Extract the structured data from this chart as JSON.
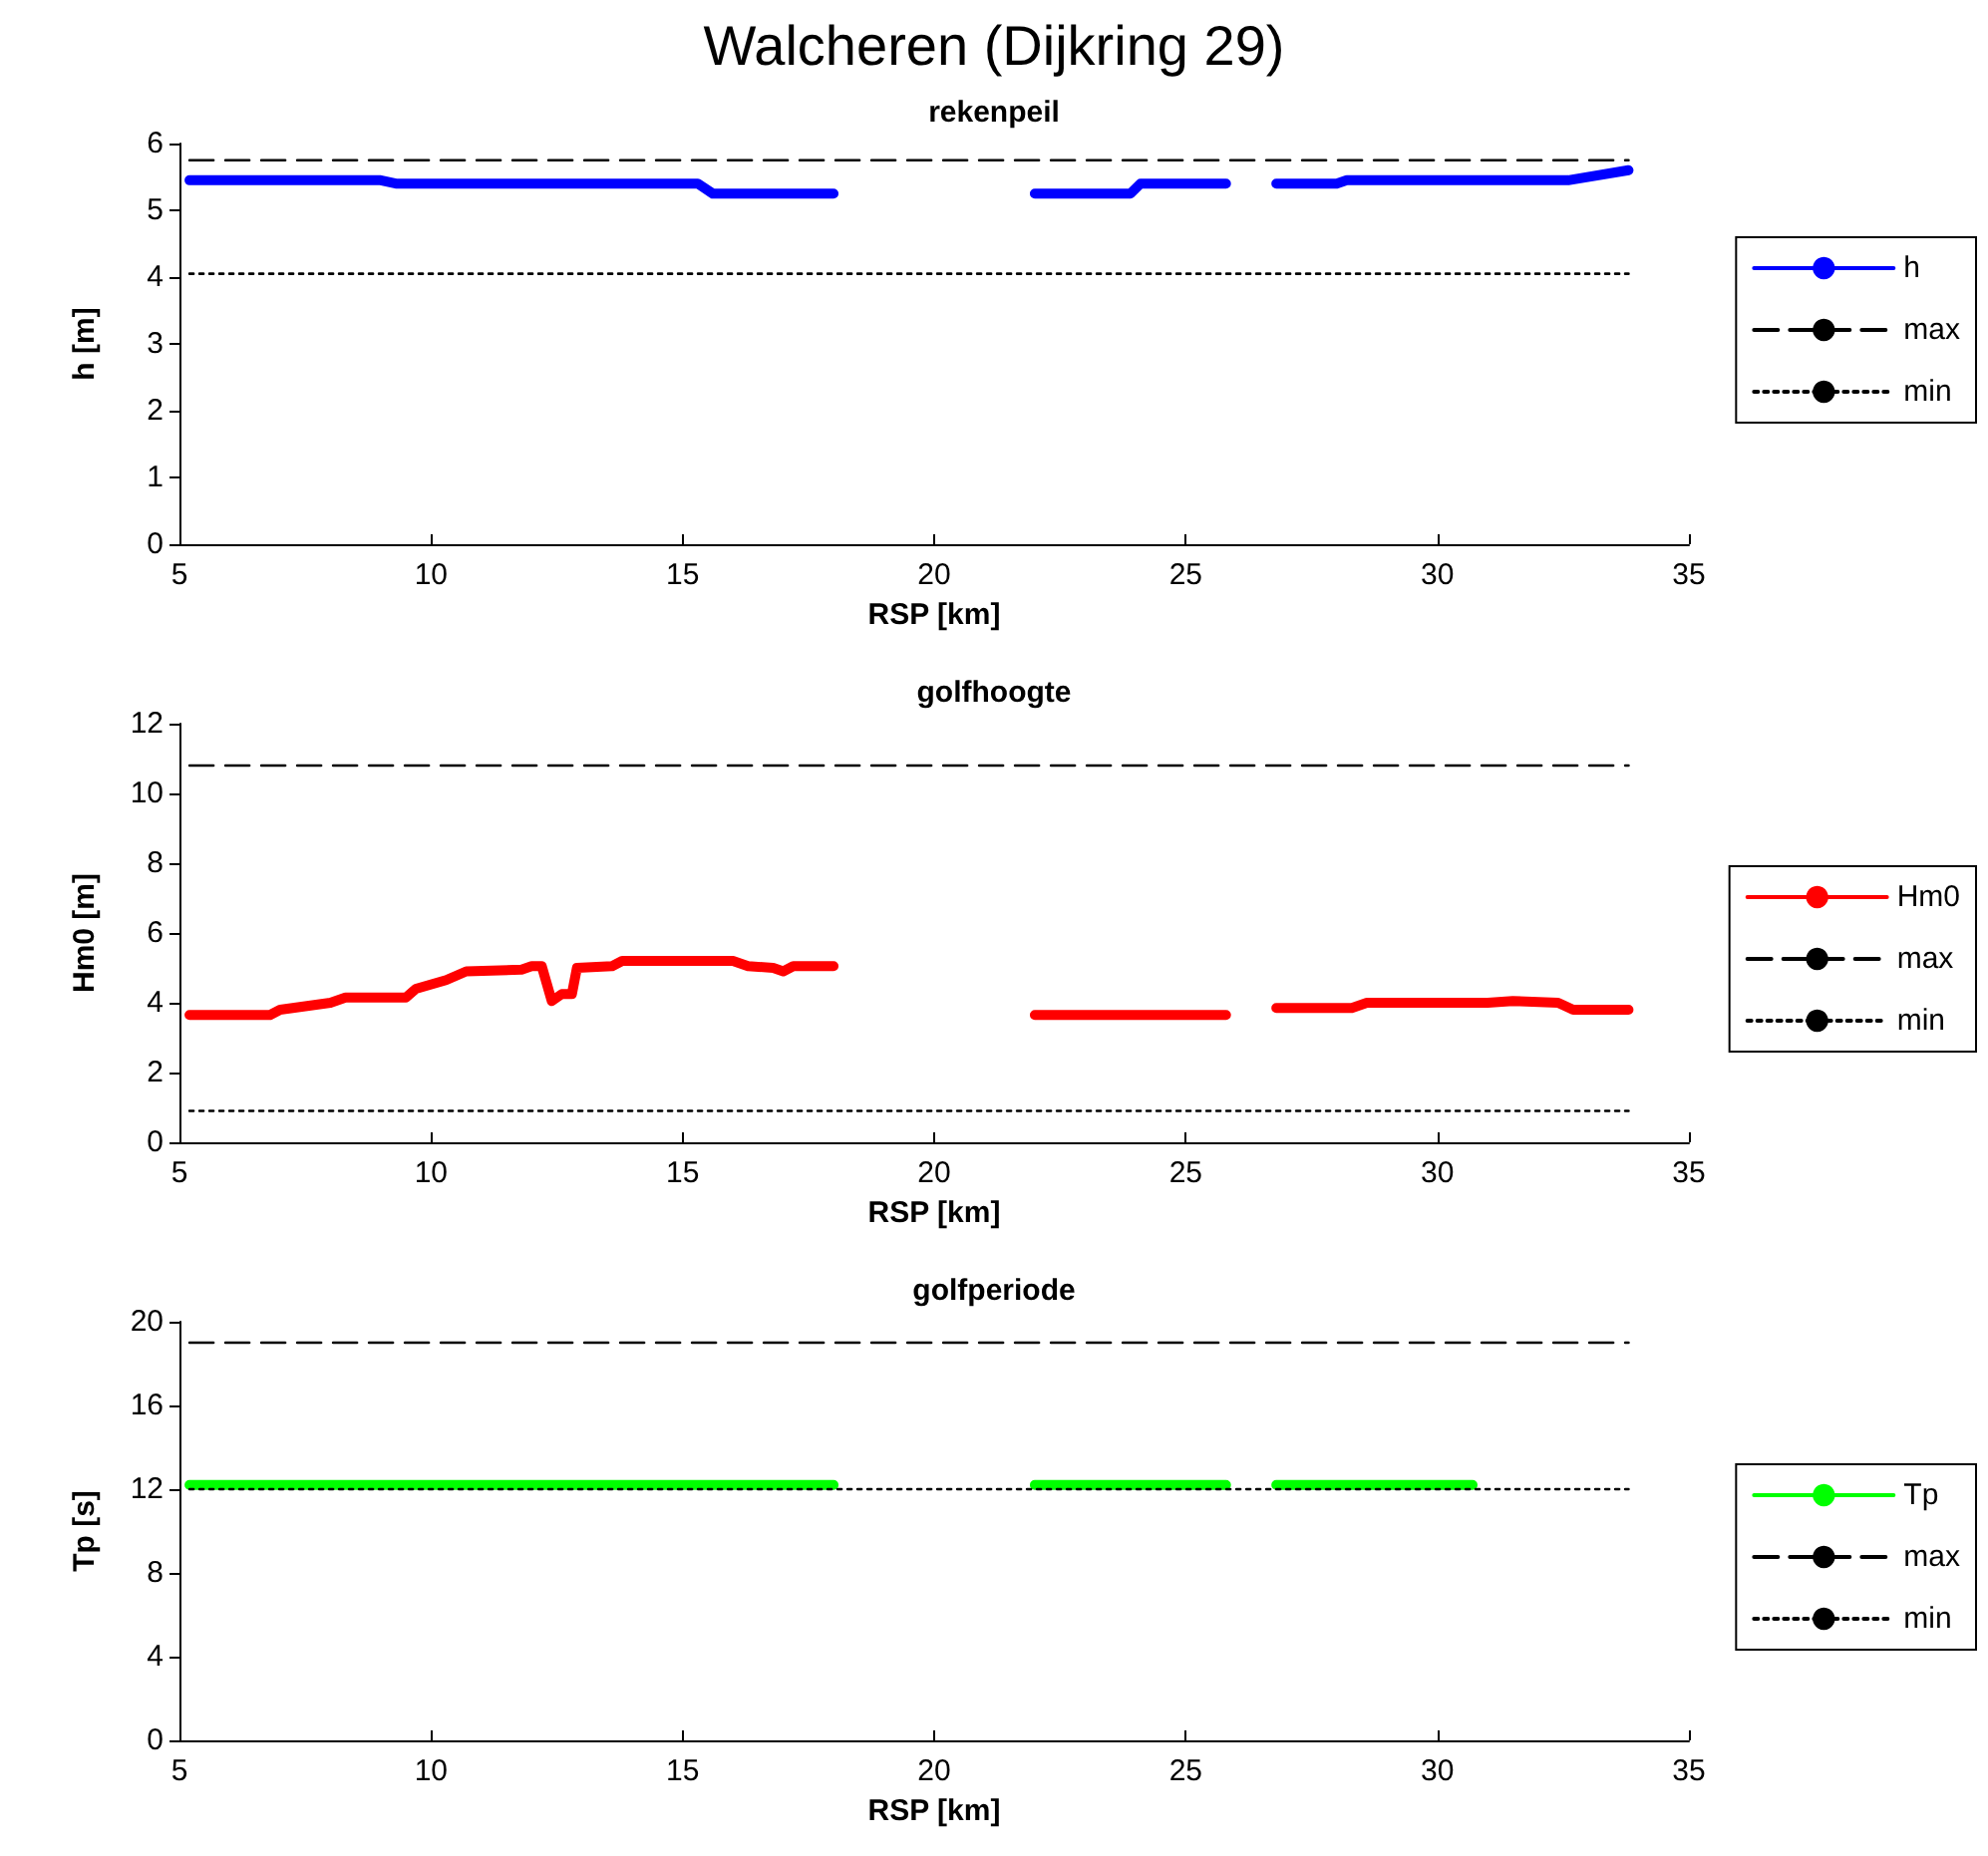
{
  "chart_data": [
    {
      "type": "line",
      "title": "rekenpeil",
      "annotations": [
        "Walcheren (Dijkring 29)"
      ],
      "xlabel": "RSP [km]",
      "ylabel": "h [m]",
      "xlim": [
        5,
        35
      ],
      "xticks": [
        5,
        10,
        15,
        20,
        25,
        30,
        35
      ],
      "ylim": [
        0,
        6
      ],
      "yticks": [
        0,
        1,
        2,
        3,
        4,
        5,
        6
      ],
      "grid": false,
      "legend": "right",
      "marker": "none",
      "series": [
        {
          "name": "h",
          "color": "#0000ff",
          "line_style": "solid",
          "x": [
            5.2,
            9.0,
            9.3,
            15.3,
            15.6,
            18.0,
            20,
            22.0,
            23.9,
            24.1,
            25.8,
            26.3,
            26.8,
            28.0,
            28.2,
            32.6,
            33.8
          ],
          "values": [
            5.45,
            5.45,
            5.4,
            5.4,
            5.25,
            5.25,
            null,
            5.25,
            5.25,
            5.4,
            5.4,
            null,
            5.4,
            5.4,
            5.45,
            5.45,
            5.6
          ]
        },
        {
          "name": "max",
          "color": "#000000",
          "line_style": "dashed",
          "x": [
            5.2,
            33.8
          ],
          "values": [
            5.75,
            5.75
          ]
        },
        {
          "name": "min",
          "color": "#000000",
          "line_style": "dotted",
          "x": [
            5.2,
            33.8
          ],
          "values": [
            4.05,
            4.05
          ]
        }
      ]
    },
    {
      "type": "line",
      "title": "golfhoogte",
      "xlabel": "RSP [km]",
      "ylabel": "Hm0 [m]",
      "xlim": [
        5,
        35
      ],
      "xticks": [
        5,
        10,
        15,
        20,
        25,
        30,
        35
      ],
      "ylim": [
        0,
        12
      ],
      "yticks": [
        0,
        2,
        4,
        6,
        8,
        10,
        12
      ],
      "grid": false,
      "legend": "right",
      "marker": "none",
      "series": [
        {
          "name": "Hm0",
          "color": "#ff0000",
          "line_style": "solid",
          "x": [
            5.2,
            6.8,
            7.0,
            7.5,
            8.0,
            8.3,
            9.5,
            9.7,
            10.3,
            10.7,
            11.8,
            12.0,
            12.2,
            12.4,
            12.6,
            12.8,
            12.9,
            13.6,
            13.8,
            16.0,
            16.3,
            16.8,
            17.0,
            17.2,
            18.0,
            20,
            22.0,
            25.8,
            26.3,
            26.8,
            28.3,
            28.6,
            31.0,
            31.5,
            32.4,
            32.7,
            33.8
          ],
          "values": [
            3.65,
            3.65,
            3.8,
            3.9,
            4.0,
            4.15,
            4.15,
            4.4,
            4.65,
            4.9,
            4.95,
            5.05,
            5.05,
            4.05,
            4.25,
            4.25,
            5.0,
            5.05,
            5.2,
            5.2,
            5.05,
            5.0,
            4.9,
            5.05,
            5.05,
            null,
            3.65,
            3.65,
            null,
            3.85,
            3.85,
            4.0,
            4.0,
            4.05,
            4.0,
            3.8,
            3.8
          ]
        },
        {
          "name": "max",
          "color": "#000000",
          "line_style": "dashed",
          "x": [
            5.2,
            33.8
          ],
          "values": [
            10.8,
            10.8
          ]
        },
        {
          "name": "min",
          "color": "#000000",
          "line_style": "dotted",
          "x": [
            5.2,
            33.8
          ],
          "values": [
            0.9,
            0.9
          ]
        }
      ]
    },
    {
      "type": "line",
      "title": "golfperiode",
      "xlabel": "RSP [km]",
      "ylabel": "Tp [s]",
      "xlim": [
        5,
        35
      ],
      "xticks": [
        5,
        10,
        15,
        20,
        25,
        30,
        35
      ],
      "ylim": [
        0,
        20
      ],
      "yticks": [
        0,
        4,
        8,
        12,
        16,
        20
      ],
      "grid": false,
      "legend": "right",
      "marker": "none",
      "series": [
        {
          "name": "Tp",
          "color": "#00ff00",
          "line_style": "solid",
          "x": [
            5.2,
            18.0,
            20,
            22.0,
            25.8,
            26.3,
            26.8,
            30.7
          ],
          "values": [
            12.2,
            12.2,
            null,
            12.2,
            12.2,
            null,
            12.2,
            12.2
          ]
        },
        {
          "name": "max",
          "color": "#000000",
          "line_style": "dashed",
          "x": [
            5.2,
            33.8
          ],
          "values": [
            19,
            19
          ]
        },
        {
          "name": "min",
          "color": "#000000",
          "line_style": "dotted",
          "x": [
            5.2,
            33.8
          ],
          "values": [
            12,
            12
          ]
        }
      ]
    }
  ]
}
